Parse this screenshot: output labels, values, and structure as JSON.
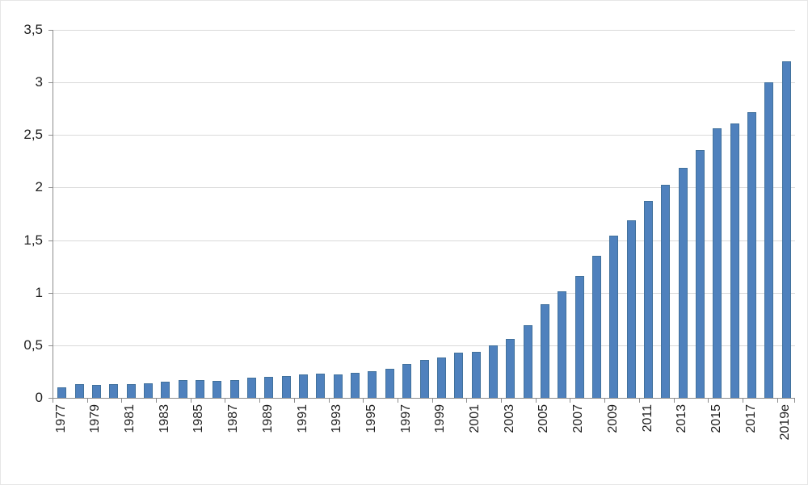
{
  "chart_data": {
    "type": "bar",
    "title": "",
    "xlabel": "",
    "ylabel": "",
    "categories": [
      "1977",
      "1978",
      "1979",
      "1980",
      "1981",
      "1982",
      "1983",
      "1984",
      "1985",
      "1986",
      "1987",
      "1988",
      "1989",
      "1990",
      "1991",
      "1992",
      "1993",
      "1994",
      "1995",
      "1996",
      "1997",
      "1998",
      "1999",
      "2000",
      "2001",
      "2002",
      "2003",
      "2004",
      "2005",
      "2006",
      "2007",
      "2008",
      "2009",
      "2010",
      "2011",
      "2012",
      "2013",
      "2014",
      "2015",
      "2016",
      "2017",
      "2018",
      "2019e"
    ],
    "values": [
      0.1,
      0.13,
      0.12,
      0.13,
      0.13,
      0.14,
      0.15,
      0.17,
      0.17,
      0.16,
      0.17,
      0.19,
      0.2,
      0.21,
      0.22,
      0.23,
      0.22,
      0.24,
      0.25,
      0.28,
      0.32,
      0.36,
      0.38,
      0.43,
      0.44,
      0.5,
      0.56,
      0.69,
      0.89,
      1.01,
      1.16,
      1.35,
      1.54,
      1.69,
      1.87,
      2.03,
      2.19,
      2.36,
      2.56,
      2.61,
      2.72,
      3.0,
      3.2
    ],
    "visible_x_tick_labels": [
      "1977",
      "1979",
      "1981",
      "1983",
      "1985",
      "1987",
      "1989",
      "1991",
      "1993",
      "1995",
      "1997",
      "1999",
      "2001",
      "2003",
      "2005",
      "2007",
      "2009",
      "2011",
      "2013",
      "2015",
      "2017",
      "2019e"
    ],
    "x_label_every": 2,
    "ylim": [
      0,
      3.5
    ],
    "yticks": [
      0,
      0.5,
      1,
      1.5,
      2,
      2.5,
      3,
      3.5
    ],
    "ytick_labels": [
      "0",
      "0,5",
      "1",
      "1,5",
      "2",
      "2,5",
      "3",
      "3,5"
    ],
    "decimal_separator": ",",
    "grid": "horizontal",
    "legend_position": "none"
  },
  "colors": {
    "bar_fill": "#4f81bd",
    "bar_border": "#41719c",
    "gridline": "#d9d9d9",
    "axis": "#8c8c8c",
    "text": "#1f1f1f",
    "background": "#ffffff"
  }
}
